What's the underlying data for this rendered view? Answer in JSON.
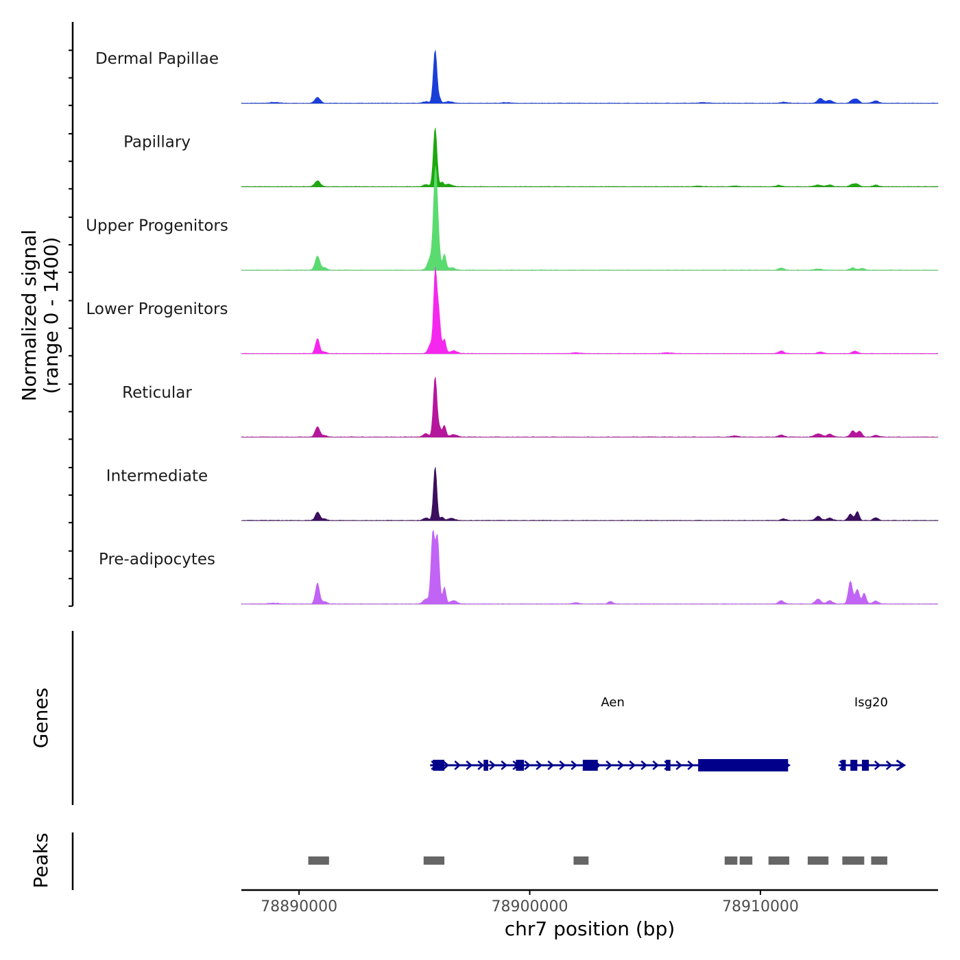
{
  "chart_data": {
    "type": "area",
    "chromosome": "chr7",
    "xlabel": "chr7 position (bp)",
    "ylabel_line1": "Normalized signal",
    "ylabel_line2": "(range 0 - 1400)",
    "ylim": [
      0,
      1400
    ],
    "xlim": [
      78887500,
      78917700
    ],
    "xticks": [
      78890000,
      78900000,
      78910000
    ],
    "xtick_labels": [
      "78890000",
      "78900000",
      "78910000"
    ],
    "tracks": [
      {
        "name": "Dermal Papillae",
        "color": "#1a3fd9",
        "peaks": [
          [
            78888900,
            20,
            200
          ],
          [
            78890800,
            140,
            120
          ],
          [
            78895500,
            40,
            120
          ],
          [
            78895900,
            1280,
            80
          ],
          [
            78896100,
            100,
            60
          ],
          [
            78896500,
            40,
            150
          ],
          [
            78899000,
            15,
            200
          ],
          [
            78907500,
            15,
            200
          ],
          [
            78911000,
            25,
            150
          ],
          [
            78912600,
            120,
            120
          ],
          [
            78913000,
            70,
            120
          ],
          [
            78914000,
            80,
            100
          ],
          [
            78914200,
            90,
            100
          ],
          [
            78915000,
            60,
            120
          ]
        ]
      },
      {
        "name": "Papillary",
        "color": "#1ea80f",
        "peaks": [
          [
            78890800,
            140,
            120
          ],
          [
            78895500,
            50,
            120
          ],
          [
            78895900,
            1420,
            80
          ],
          [
            78896200,
            100,
            70
          ],
          [
            78896500,
            60,
            150
          ],
          [
            78907300,
            20,
            150
          ],
          [
            78908900,
            20,
            150
          ],
          [
            78910800,
            35,
            120
          ],
          [
            78912500,
            40,
            150
          ],
          [
            78913000,
            45,
            120
          ],
          [
            78914000,
            60,
            120
          ],
          [
            78914200,
            50,
            100
          ],
          [
            78915000,
            40,
            120
          ]
        ]
      },
      {
        "name": "Upper Progenitors",
        "color": "#5adb6f",
        "peaks": [
          [
            78890800,
            340,
            100
          ],
          [
            78891100,
            60,
            100
          ],
          [
            78895700,
            300,
            120
          ],
          [
            78895900,
            1900,
            80
          ],
          [
            78896000,
            900,
            90
          ],
          [
            78896300,
            380,
            70
          ],
          [
            78896600,
            60,
            150
          ],
          [
            78910900,
            50,
            120
          ],
          [
            78912500,
            30,
            150
          ],
          [
            78914000,
            50,
            120
          ],
          [
            78914400,
            40,
            120
          ]
        ]
      },
      {
        "name": "Lower Progenitors",
        "color": "#f527ef",
        "peaks": [
          [
            78890800,
            360,
            90
          ],
          [
            78891100,
            40,
            100
          ],
          [
            78895700,
            220,
            100
          ],
          [
            78895900,
            1850,
            70
          ],
          [
            78896050,
            1000,
            80
          ],
          [
            78896300,
            340,
            70
          ],
          [
            78896700,
            70,
            150
          ],
          [
            78902000,
            20,
            200
          ],
          [
            78906000,
            20,
            200
          ],
          [
            78910900,
            60,
            120
          ],
          [
            78912600,
            40,
            120
          ],
          [
            78914100,
            60,
            120
          ]
        ]
      },
      {
        "name": "Reticular",
        "color": "#b5169c",
        "peaks": [
          [
            78890800,
            250,
            100
          ],
          [
            78891100,
            40,
            100
          ],
          [
            78895500,
            80,
            120
          ],
          [
            78895900,
            1450,
            80
          ],
          [
            78896100,
            200,
            70
          ],
          [
            78896300,
            280,
            70
          ],
          [
            78896700,
            60,
            150
          ],
          [
            78908900,
            30,
            150
          ],
          [
            78910900,
            50,
            120
          ],
          [
            78912500,
            80,
            150
          ],
          [
            78913000,
            70,
            120
          ],
          [
            78914000,
            150,
            100
          ],
          [
            78914300,
            140,
            100
          ],
          [
            78915000,
            40,
            120
          ]
        ]
      },
      {
        "name": "Intermediate",
        "color": "#3b0f5e",
        "peaks": [
          [
            78890800,
            200,
            100
          ],
          [
            78891100,
            40,
            100
          ],
          [
            78895500,
            60,
            120
          ],
          [
            78895900,
            1300,
            75
          ],
          [
            78896200,
            80,
            70
          ],
          [
            78896600,
            50,
            150
          ],
          [
            78911000,
            40,
            120
          ],
          [
            78912500,
            100,
            120
          ],
          [
            78913000,
            60,
            120
          ],
          [
            78913900,
            150,
            100
          ],
          [
            78914200,
            220,
            80
          ],
          [
            78915000,
            70,
            100
          ]
        ]
      },
      {
        "name": "Pre-adipocytes",
        "color": "#c163f5",
        "peaks": [
          [
            78888900,
            20,
            200
          ],
          [
            78890800,
            500,
            90
          ],
          [
            78891100,
            60,
            100
          ],
          [
            78895500,
            120,
            120
          ],
          [
            78895800,
            1700,
            80
          ],
          [
            78896000,
            1600,
            80
          ],
          [
            78896300,
            400,
            70
          ],
          [
            78896700,
            80,
            150
          ],
          [
            78902000,
            30,
            150
          ],
          [
            78903500,
            60,
            100
          ],
          [
            78910900,
            80,
            120
          ],
          [
            78912500,
            120,
            120
          ],
          [
            78913000,
            80,
            120
          ],
          [
            78913900,
            550,
            90
          ],
          [
            78914200,
            350,
            90
          ],
          [
            78914500,
            260,
            80
          ],
          [
            78915000,
            70,
            120
          ]
        ]
      }
    ],
    "genes_track": {
      "title": "Genes",
      "genes": [
        {
          "name": "Aen",
          "strand": "+",
          "label_pos": 78903600,
          "start": 78895800,
          "end": 78911200,
          "exons": [
            [
              78895800,
              78896300,
              0.5
            ],
            [
              78898000,
              78898200,
              0.5
            ],
            [
              78899400,
              78899750,
              0.5
            ],
            [
              78902300,
              78902950,
              0.5
            ],
            [
              78905900,
              78906100,
              0.5
            ],
            [
              78907300,
              78911200,
              1.0
            ]
          ]
        },
        {
          "name": "Isg20",
          "strand": "+",
          "label_pos": 78914800,
          "start": 78913500,
          "end": 78916200,
          "exons": [
            [
              78913500,
              78913700,
              0.5
            ],
            [
              78913900,
              78914200,
              0.5
            ],
            [
              78914400,
              78914700,
              0.5
            ]
          ]
        }
      ]
    },
    "peaks_track": {
      "title": "Peaks",
      "regions": [
        [
          78890400,
          78891300
        ],
        [
          78895400,
          78896300
        ],
        [
          78901900,
          78902550
        ],
        [
          78908450,
          78909000
        ],
        [
          78909100,
          78909650
        ],
        [
          78910350,
          78911250
        ],
        [
          78912050,
          78912950
        ],
        [
          78913550,
          78914500
        ],
        [
          78914800,
          78915500
        ]
      ]
    }
  }
}
